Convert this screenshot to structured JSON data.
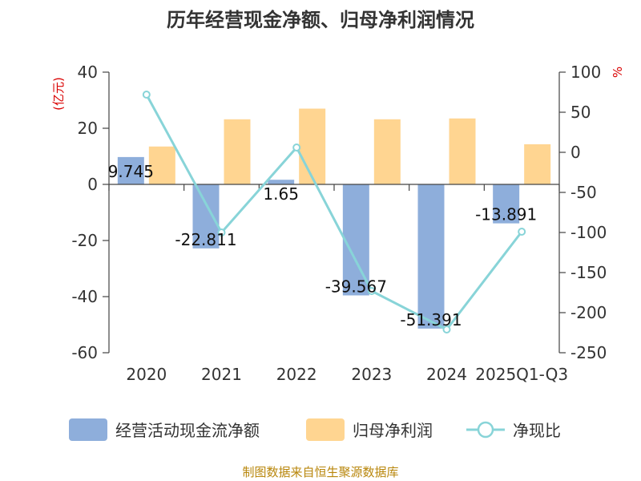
{
  "chart_data": {
    "type": "bar",
    "title": "历年经营现金净额、归母净利润情况",
    "categories": [
      "2020",
      "2021",
      "2022",
      "2023",
      "2024",
      "2025Q1-Q3"
    ],
    "series": [
      {
        "name": "经营活动现金流净额",
        "type": "bar",
        "axis": "left",
        "color": "#8eaedb",
        "values": [
          9.745,
          -22.811,
          1.65,
          -39.567,
          -51.391,
          -13.891
        ],
        "data_labels": [
          "9.745",
          "-22.811",
          "1.65",
          "-39.567",
          "-51.391",
          "-13.891"
        ]
      },
      {
        "name": "归母净利润",
        "type": "bar",
        "axis": "left",
        "color": "#ffd591",
        "values": [
          13.5,
          23.2,
          27.0,
          23.2,
          23.5,
          14.3
        ]
      },
      {
        "name": "净现比",
        "type": "line",
        "axis": "right",
        "color": "#88d4d8",
        "values": [
          72,
          -100,
          6,
          -173,
          -221,
          -99
        ]
      }
    ],
    "left_axis": {
      "unit": "(亿元)",
      "ylim": [
        -60,
        40
      ],
      "ticks": [
        "40",
        "20",
        "0",
        "-20",
        "-40",
        "-60"
      ]
    },
    "right_axis": {
      "unit": "%",
      "ylim": [
        -250,
        100
      ],
      "ticks": [
        "100",
        "50",
        "0",
        "-50",
        "-100",
        "-150",
        "-200",
        "-250"
      ]
    },
    "grid": false,
    "legend_position": "bottom"
  },
  "source": "制图数据来自恒生聚源数据库"
}
